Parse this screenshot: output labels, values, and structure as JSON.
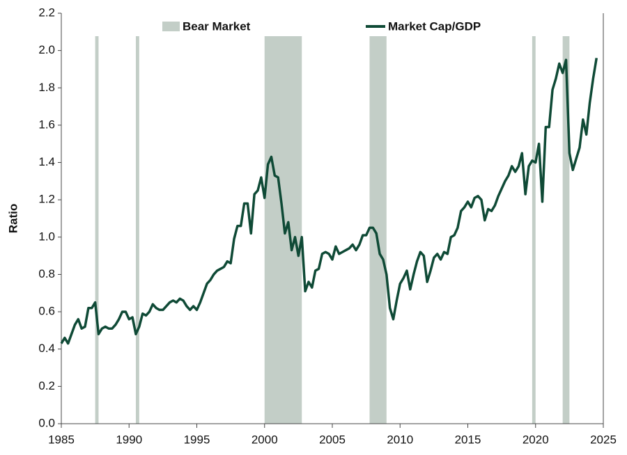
{
  "chart_data": {
    "type": "line",
    "ylabel": "Ratio",
    "x": [
      1985,
      1985.25,
      1985.5,
      1985.75,
      1986,
      1986.25,
      1986.5,
      1986.75,
      1987,
      1987.25,
      1987.5,
      1987.75,
      1988,
      1988.25,
      1988.5,
      1988.75,
      1989,
      1989.25,
      1989.5,
      1989.75,
      1990,
      1990.25,
      1990.5,
      1990.75,
      1991,
      1991.25,
      1991.5,
      1991.75,
      1992,
      1992.25,
      1992.5,
      1992.75,
      1993,
      1993.25,
      1993.5,
      1993.75,
      1994,
      1994.25,
      1994.5,
      1994.75,
      1995,
      1995.25,
      1995.5,
      1995.75,
      1996,
      1996.25,
      1996.5,
      1996.75,
      1997,
      1997.25,
      1997.5,
      1997.75,
      1998,
      1998.25,
      1998.5,
      1998.75,
      1999,
      1999.25,
      1999.5,
      1999.75,
      2000,
      2000.25,
      2000.5,
      2000.75,
      2001,
      2001.25,
      2001.5,
      2001.75,
      2002,
      2002.25,
      2002.5,
      2002.75,
      2003,
      2003.25,
      2003.5,
      2003.75,
      2004,
      2004.25,
      2004.5,
      2004.75,
      2005,
      2005.25,
      2005.5,
      2005.75,
      2006,
      2006.25,
      2006.5,
      2006.75,
      2007,
      2007.25,
      2007.5,
      2007.75,
      2008,
      2008.25,
      2008.5,
      2008.75,
      2009,
      2009.25,
      2009.5,
      2009.75,
      2010,
      2010.25,
      2010.5,
      2010.75,
      2011,
      2011.25,
      2011.5,
      2011.75,
      2012,
      2012.25,
      2012.5,
      2012.75,
      2013,
      2013.25,
      2013.5,
      2013.75,
      2014,
      2014.25,
      2014.5,
      2014.75,
      2015,
      2015.25,
      2015.5,
      2015.75,
      2016,
      2016.25,
      2016.5,
      2016.75,
      2017,
      2017.25,
      2017.5,
      2017.75,
      2018,
      2018.25,
      2018.5,
      2018.75,
      2019,
      2019.25,
      2019.5,
      2019.75,
      2020,
      2020.25,
      2020.5,
      2020.75,
      2021,
      2021.25,
      2021.5,
      2021.75,
      2022,
      2022.25,
      2022.5,
      2022.75,
      2023,
      2023.25,
      2023.5,
      2023.75,
      2024,
      2024.25,
      2024.5
    ],
    "series": [
      {
        "name": "Market Cap/GDP",
        "color": "#0f4a36",
        "values": [
          0.43,
          0.46,
          0.43,
          0.48,
          0.53,
          0.56,
          0.51,
          0.52,
          0.62,
          0.62,
          0.65,
          0.48,
          0.51,
          0.52,
          0.51,
          0.51,
          0.53,
          0.56,
          0.6,
          0.6,
          0.56,
          0.57,
          0.48,
          0.52,
          0.59,
          0.58,
          0.6,
          0.64,
          0.62,
          0.61,
          0.61,
          0.63,
          0.65,
          0.66,
          0.65,
          0.67,
          0.66,
          0.63,
          0.61,
          0.63,
          0.61,
          0.65,
          0.7,
          0.75,
          0.77,
          0.8,
          0.82,
          0.83,
          0.84,
          0.87,
          0.86,
          0.99,
          1.06,
          1.06,
          1.18,
          1.18,
          1.02,
          1.23,
          1.25,
          1.32,
          1.21,
          1.39,
          1.43,
          1.33,
          1.32,
          1.18,
          1.02,
          1.08,
          0.93,
          1.0,
          0.9,
          1.0,
          0.71,
          0.76,
          0.73,
          0.82,
          0.83,
          0.91,
          0.92,
          0.91,
          0.88,
          0.95,
          0.91,
          0.92,
          0.93,
          0.94,
          0.96,
          0.93,
          0.96,
          1.01,
          1.01,
          1.05,
          1.05,
          1.02,
          0.91,
          0.88,
          0.8,
          0.62,
          0.56,
          0.66,
          0.75,
          0.78,
          0.82,
          0.72,
          0.8,
          0.87,
          0.92,
          0.9,
          0.76,
          0.82,
          0.89,
          0.91,
          0.88,
          0.92,
          0.91,
          1.0,
          1.01,
          1.05,
          1.14,
          1.16,
          1.19,
          1.16,
          1.21,
          1.22,
          1.2,
          1.09,
          1.15,
          1.14,
          1.17,
          1.22,
          1.26,
          1.3,
          1.33,
          1.38,
          1.35,
          1.38,
          1.45,
          1.23,
          1.38,
          1.41,
          1.4,
          1.5,
          1.19,
          1.59,
          1.59,
          1.79,
          1.85,
          1.93,
          1.88,
          1.95,
          1.45,
          1.36,
          1.42,
          1.48,
          1.63,
          1.55,
          1.72,
          1.85,
          1.96
        ]
      }
    ],
    "bear_markets": {
      "name": "Bear Market",
      "color": "#c3cec7",
      "spans": [
        [
          1987.5,
          1987.75
        ],
        [
          1990.5,
          1990.75
        ],
        [
          2000,
          2002.75
        ],
        [
          2007.75,
          2009
        ],
        [
          2019.75,
          2020
        ],
        [
          2022,
          2022.5
        ]
      ]
    },
    "xlim": [
      1985,
      2025
    ],
    "xticks": [
      1985,
      1990,
      1995,
      2000,
      2005,
      2010,
      2015,
      2020,
      2025
    ],
    "ylim": [
      0,
      2.2
    ],
    "yticks": [
      {
        "value": 0,
        "label": "0.0"
      },
      0.2,
      0.4,
      0.6,
      0.8,
      {
        "value": 1,
        "label": "1.0"
      },
      1.2,
      1.4,
      1.6,
      1.8,
      {
        "value": 2,
        "label": "2.0"
      },
      2.2
    ]
  }
}
